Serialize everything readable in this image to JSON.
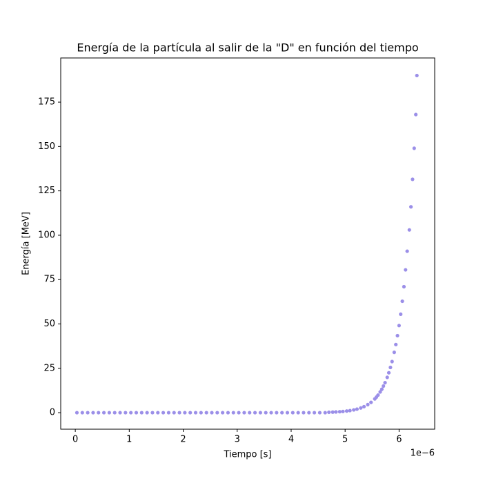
{
  "chart_data": {
    "type": "scatter",
    "title": "Energía de la partícula al salir de la \"D\" en función del tiempo",
    "x_label": "Tiempo [s]",
    "y_label": "Energía [MeV]",
    "x_offset_label": "1e−6",
    "color": "#9b8fe8",
    "x": [
      0.03,
      0.13,
      0.23,
      0.33,
      0.43,
      0.53,
      0.63,
      0.73,
      0.83,
      0.93,
      1.03,
      1.13,
      1.23,
      1.33,
      1.43,
      1.53,
      1.63,
      1.73,
      1.83,
      1.93,
      2.03,
      2.13,
      2.23,
      2.33,
      2.43,
      2.53,
      2.63,
      2.73,
      2.83,
      2.93,
      3.03,
      3.13,
      3.23,
      3.33,
      3.43,
      3.53,
      3.63,
      3.73,
      3.83,
      3.93,
      4.03,
      4.13,
      4.23,
      4.33,
      4.43,
      4.53,
      4.63,
      4.7,
      4.77,
      4.83,
      4.9,
      4.96,
      5.03,
      5.09,
      5.16,
      5.22,
      5.29,
      5.35,
      5.42,
      5.48,
      5.55,
      5.58,
      5.61,
      5.65,
      5.68,
      5.71,
      5.74,
      5.78,
      5.81,
      5.84,
      5.87,
      5.91,
      5.94,
      5.97,
      6.0,
      6.03,
      6.06,
      6.09,
      6.12,
      6.15,
      6.19,
      6.22,
      6.25,
      6.28,
      6.31,
      6.33
    ],
    "values": [
      0,
      0,
      0,
      0,
      0,
      0,
      0,
      0,
      0,
      0,
      0,
      0,
      0,
      0,
      0,
      0,
      0,
      0,
      0,
      0,
      0,
      0,
      0,
      0,
      0,
      0,
      0,
      0,
      0,
      0,
      0,
      0,
      0,
      0,
      0,
      0,
      0,
      0,
      0,
      0,
      0,
      0,
      0,
      0,
      0,
      0,
      0,
      0.24,
      0.32,
      0.41,
      0.54,
      0.69,
      0.92,
      1.18,
      1.57,
      2.0,
      2.67,
      3.42,
      4.55,
      5.82,
      7.76,
      8.78,
      9.93,
      11.7,
      13.2,
      15.0,
      16.9,
      19.9,
      22.5,
      25.5,
      28.8,
      34.0,
      38.4,
      43.4,
      49.1,
      55.5,
      62.8,
      71.0,
      80.5,
      91,
      103,
      116,
      131.5,
      149,
      168,
      190
    ],
    "xlim": [
      -0.27,
      6.66
    ],
    "ylim": [
      -9.3,
      199.9
    ],
    "xticks": [
      0,
      1,
      2,
      3,
      4,
      5,
      6
    ],
    "yticks": [
      0,
      25,
      50,
      75,
      100,
      125,
      150,
      175
    ]
  }
}
